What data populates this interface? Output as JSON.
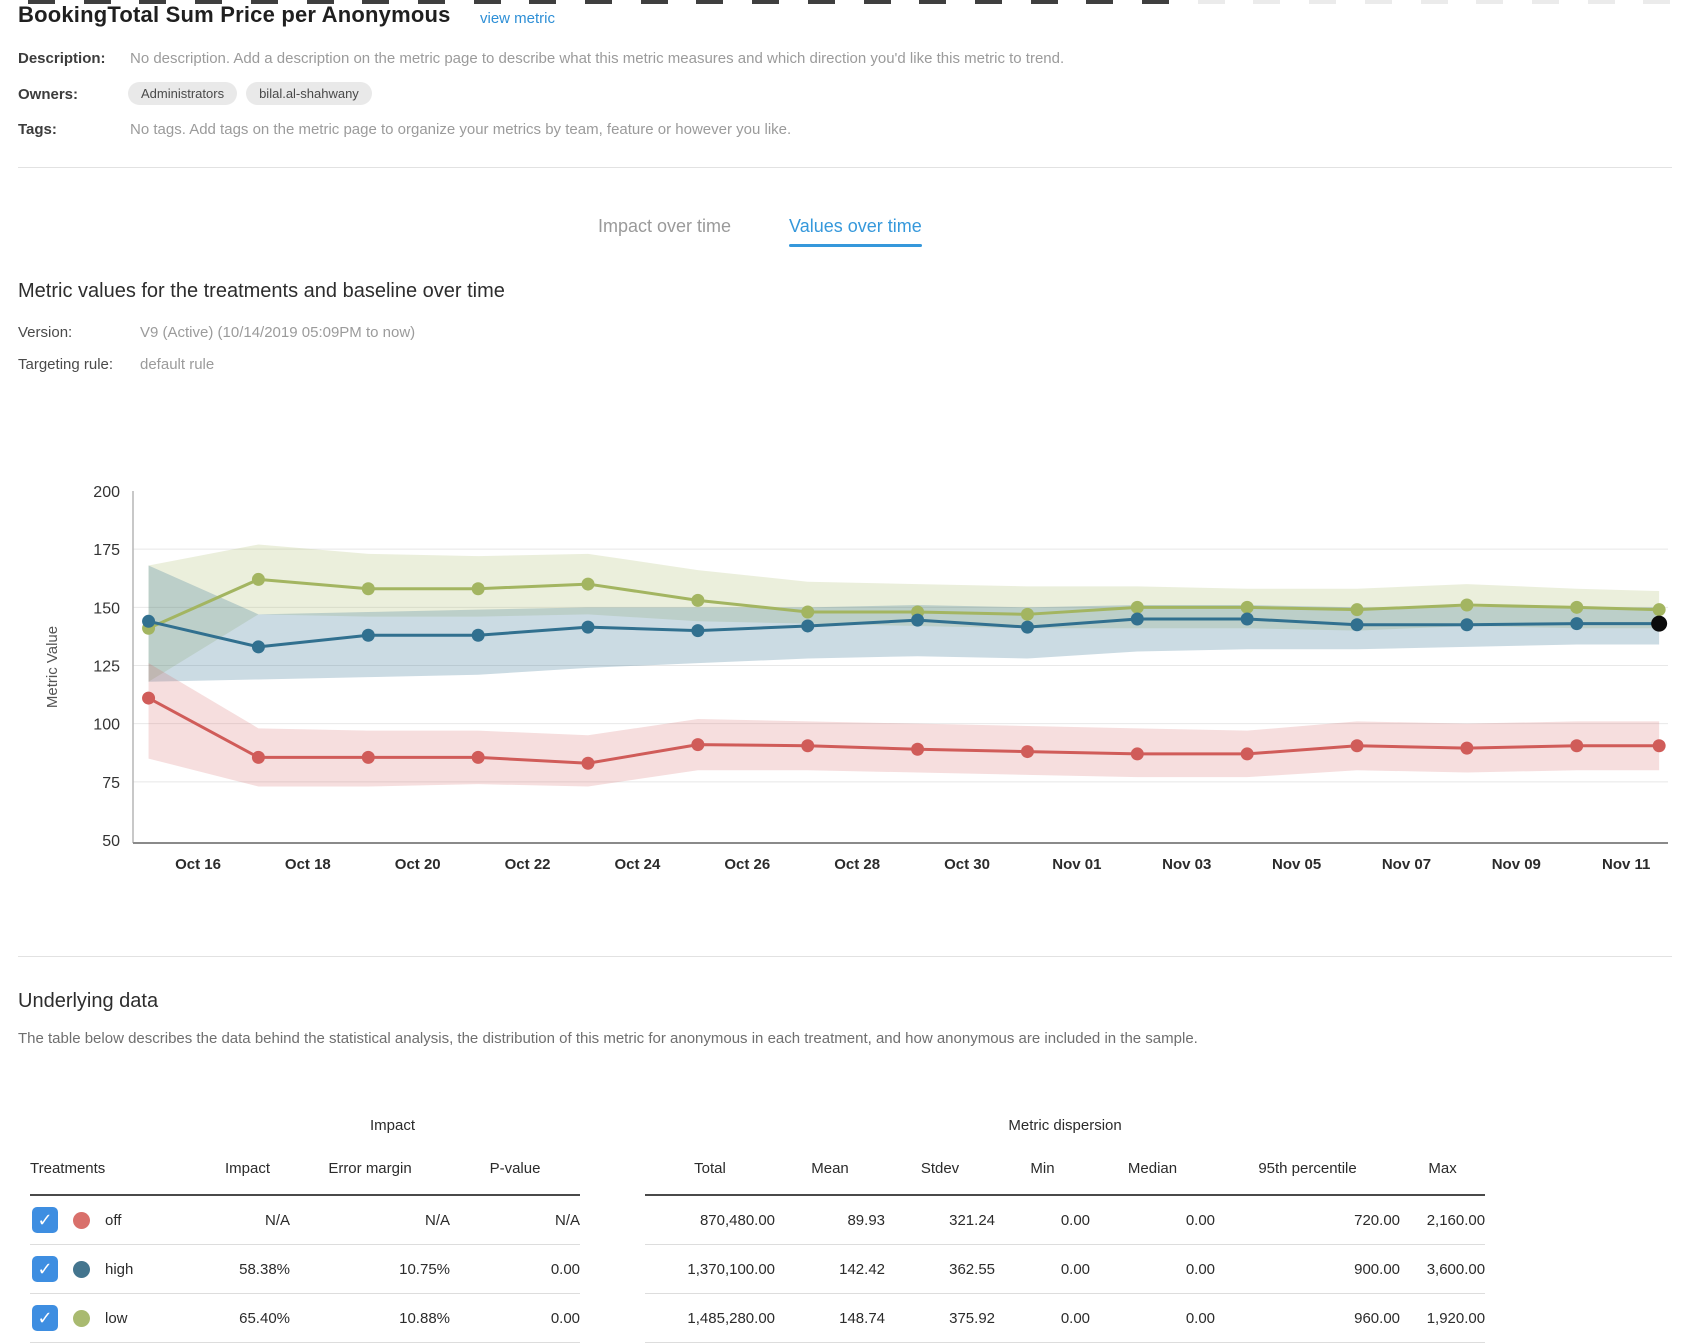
{
  "header": {
    "title": "BookingTotal Sum Price per Anonymous",
    "view_metric_link": "view metric"
  },
  "meta": {
    "description_label": "Description:",
    "description_text": "No description. Add a description on the metric page to describe what this metric measures and which direction you'd like this metric to trend.",
    "owners_label": "Owners:",
    "owners": [
      "Administrators",
      "bilal.al-shahwany"
    ],
    "tags_label": "Tags:",
    "tags_text": "No tags. Add tags on the metric page to organize your metrics by team, feature or however you like."
  },
  "tabs": [
    {
      "label": "Impact over time",
      "active": false
    },
    {
      "label": "Values over time",
      "active": true
    }
  ],
  "section": {
    "heading": "Metric values for the treatments and baseline over time",
    "version_label": "Version:",
    "version_value": "V9 (Active) (10/14/2019 05:09PM to now)",
    "targeting_label": "Targeting rule:",
    "targeting_value": "default rule"
  },
  "chart_data": {
    "type": "line",
    "title": "",
    "xlabel": "",
    "ylabel": "Metric Value",
    "ylim": [
      50,
      200
    ],
    "yticks": [
      200,
      175,
      150,
      125,
      100,
      75,
      50
    ],
    "grid": "horizontal",
    "legend": "none",
    "xtick_labels": [
      "Oct 16",
      "Oct 18",
      "Oct 20",
      "Oct 22",
      "Oct 24",
      "Oct 26",
      "Oct 28",
      "Oct 30",
      "Nov 01",
      "Nov 03",
      "Nov 05",
      "Nov 07",
      "Nov 09",
      "Nov 11"
    ],
    "xtick_days": [
      0,
      2,
      4,
      6,
      8,
      10,
      12,
      14,
      16,
      18,
      20,
      22,
      24,
      26
    ],
    "point_days": [
      -0.9,
      1.1,
      3.1,
      5.1,
      7.1,
      9.1,
      11.1,
      13.1,
      15.1,
      17.1,
      19.1,
      21.1,
      23.1,
      25.1,
      26.6
    ],
    "point_dates": [
      "Oct 15",
      "Oct 17",
      "Oct 19",
      "Oct 21",
      "Oct 23",
      "Oct 25",
      "Oct 27",
      "Oct 29",
      "Oct 31",
      "Nov 02",
      "Nov 04",
      "Nov 06",
      "Nov 08",
      "Nov 10",
      "Nov 11"
    ],
    "series": [
      {
        "name": "low",
        "color": "#a3b561",
        "band_opacity": 0.22,
        "values": [
          141,
          162,
          158,
          158,
          160,
          153,
          148,
          148,
          147,
          150,
          150,
          149,
          151,
          150,
          149
        ],
        "band_upper": [
          168,
          177,
          173,
          172,
          173,
          166,
          161,
          160,
          159,
          159,
          158,
          158,
          160,
          158,
          157
        ],
        "band_lower": [
          118,
          147,
          146,
          146,
          147,
          144,
          143,
          142,
          141,
          141,
          141,
          140,
          142,
          141,
          141
        ]
      },
      {
        "name": "high",
        "color": "#31708f",
        "band_opacity": 0.25,
        "final_point_color": "#0b0b0b",
        "values": [
          144,
          133,
          138,
          138,
          141.5,
          140,
          142,
          144.5,
          141.5,
          145,
          145,
          142.5,
          142.5,
          143,
          143
        ],
        "band_upper": [
          168,
          147,
          148,
          149,
          150,
          150,
          150,
          151,
          150,
          151,
          151,
          150,
          150,
          150,
          150
        ],
        "band_lower": [
          118,
          119,
          120,
          121,
          124,
          126,
          128,
          129,
          128,
          131,
          132,
          132,
          133,
          134,
          134
        ]
      },
      {
        "name": "off",
        "color": "#d05c59",
        "band_opacity": 0.2,
        "values": [
          111,
          85.5,
          85.5,
          85.5,
          83,
          91,
          90.5,
          89,
          88,
          87,
          87,
          90.5,
          89.5,
          90.5,
          90.5
        ],
        "band_upper": [
          126,
          98,
          97,
          97,
          95,
          102,
          101,
          100,
          99,
          98,
          97,
          101,
          100,
          101,
          101
        ],
        "band_lower": [
          85,
          73,
          73,
          74,
          73,
          80,
          80,
          79,
          78,
          77,
          77,
          80,
          79,
          80,
          80
        ]
      }
    ]
  },
  "underlying": {
    "heading": "Underlying data",
    "description": "The table below describes the data behind the statistical analysis, the distribution of this metric for anonymous in each treatment, and how anonymous are included in the sample.",
    "table": {
      "group_headers": {
        "impact": "Impact",
        "dispersion": "Metric dispersion"
      },
      "columns": [
        "Treatments",
        "Impact",
        "Error margin",
        "P-value",
        "Total",
        "Mean",
        "Stdev",
        "Min",
        "Median",
        "95th percentile",
        "Max"
      ],
      "rows": [
        {
          "treatment": "off",
          "dot_color": "#d9706b",
          "checked": true,
          "impact": "N/A",
          "error_margin": "N/A",
          "p_value": "N/A",
          "total": "870,480.00",
          "mean": "89.93",
          "stdev": "321.24",
          "min": "0.00",
          "median": "0.00",
          "p95": "720.00",
          "max": "2,160.00"
        },
        {
          "treatment": "high",
          "dot_color": "#44758e",
          "checked": true,
          "impact": "58.38%",
          "error_margin": "10.75%",
          "p_value": "0.00",
          "total": "1,370,100.00",
          "mean": "142.42",
          "stdev": "362.55",
          "min": "0.00",
          "median": "0.00",
          "p95": "900.00",
          "max": "3,600.00"
        },
        {
          "treatment": "low",
          "dot_color": "#a9ba70",
          "checked": true,
          "impact": "65.40%",
          "error_margin": "10.88%",
          "p_value": "0.00",
          "total": "1,485,280.00",
          "mean": "148.74",
          "stdev": "375.92",
          "min": "0.00",
          "median": "0.00",
          "p95": "960.00",
          "max": "1,920.00"
        }
      ]
    }
  },
  "colors": {
    "accent_blue": "#3598db",
    "link_blue": "#2e8fd6",
    "checkbox_blue": "#3e8ee1",
    "series_low": "#a3b561",
    "series_high": "#31708f",
    "series_off": "#d05c59",
    "final_point": "#0b0b0b"
  }
}
